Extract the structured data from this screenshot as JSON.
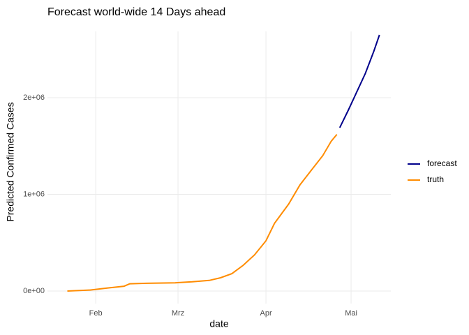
{
  "chart_data": {
    "type": "line",
    "title": "Forecast world-wide 14 Days ahead",
    "x_label": "date",
    "y_label": "Predicted Confirmed Cases",
    "xlim": [
      15,
      136
    ],
    "xticks": [
      {
        "value": 32,
        "label": "Feb"
      },
      {
        "value": 61,
        "label": "Mrz"
      },
      {
        "value": 92,
        "label": "Apr"
      },
      {
        "value": 122,
        "label": "Mai"
      }
    ],
    "ylim": [
      -130000,
      2686000
    ],
    "yticks": [
      {
        "value": 0,
        "label": "0e+00"
      },
      {
        "value": 1000000,
        "label": "1e+06"
      },
      {
        "value": 2000000,
        "label": "2e+06"
      }
    ],
    "grid": true,
    "legend": "right",
    "series": [
      {
        "name": "forecast",
        "color": "#00008b",
        "x": [
          118,
          121,
          124,
          127,
          130,
          132
        ],
        "values": [
          1690000,
          1870000,
          2060000,
          2250000,
          2480000,
          2650000
        ]
      },
      {
        "name": "truth",
        "color": "#ff8c00",
        "x": [
          22,
          30,
          36,
          42,
          44,
          50,
          60,
          66,
          72,
          76,
          80,
          84,
          88,
          92,
          95,
          100,
          104,
          108,
          112,
          115,
          117
        ],
        "values": [
          0,
          10000,
          30000,
          50000,
          75000,
          80000,
          85000,
          95000,
          110000,
          137000,
          180000,
          267000,
          375000,
          520000,
          700000,
          900000,
          1100000,
          1250000,
          1400000,
          1550000,
          1620000
        ]
      }
    ]
  }
}
